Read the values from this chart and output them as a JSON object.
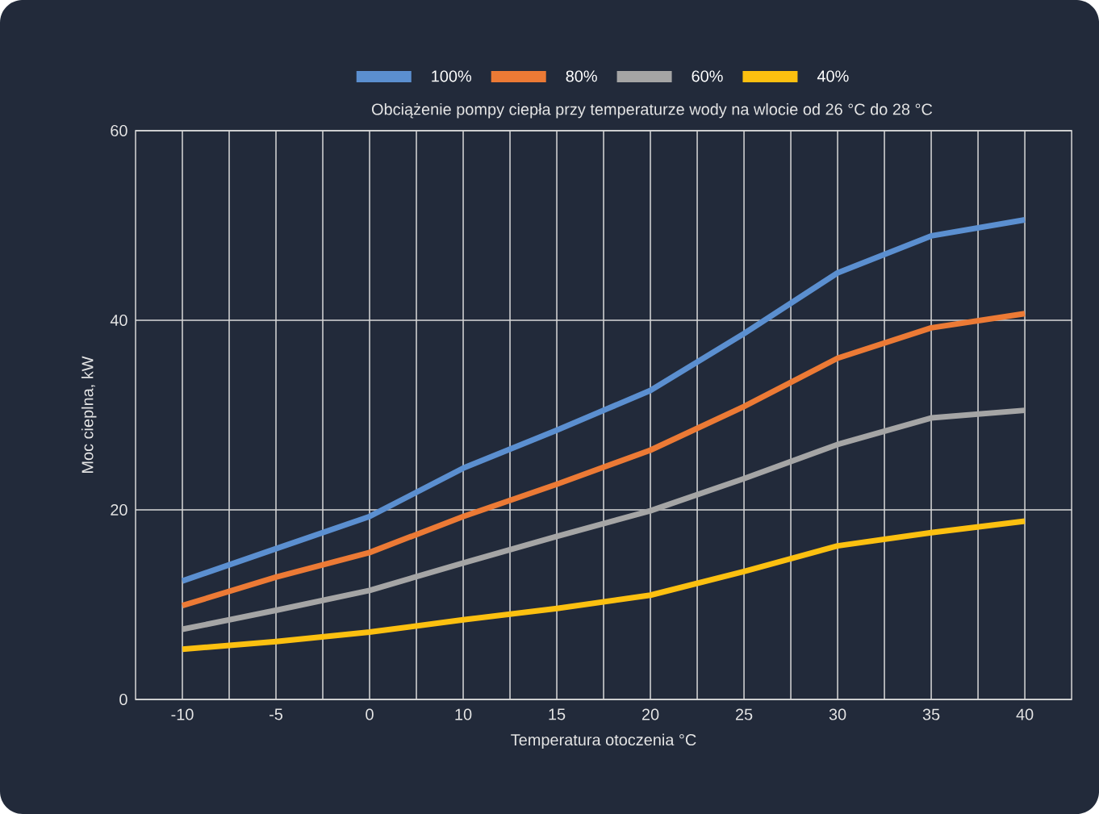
{
  "chart_data": {
    "type": "line",
    "title": "Obciążenie pompy ciepła przy temperaturze wody na wlocie od 26 °C do 28 °C",
    "xlabel": "Temperatura otoczenia °C",
    "ylabel": "Moc cieplna, kW",
    "categories": [
      "-10",
      "-5",
      "0",
      "10",
      "15",
      "20",
      "25",
      "30",
      "35",
      "40"
    ],
    "series": [
      {
        "name": "100%",
        "color": "#5b8fd0",
        "values": [
          12.5,
          15.9,
          19.3,
          24.4,
          28.4,
          32.6,
          38.6,
          45.0,
          48.9,
          50.6
        ]
      },
      {
        "name": "80%",
        "color": "#ec7a35",
        "values": [
          9.9,
          12.9,
          15.5,
          19.3,
          22.7,
          26.3,
          30.9,
          36.0,
          39.2,
          40.7
        ]
      },
      {
        "name": "60%",
        "color": "#a5a5a5",
        "values": [
          7.4,
          9.4,
          11.5,
          14.4,
          17.2,
          19.9,
          23.3,
          26.9,
          29.7,
          30.5
        ]
      },
      {
        "name": "40%",
        "color": "#fcc010",
        "values": [
          5.3,
          6.1,
          7.1,
          8.4,
          9.6,
          11.0,
          13.5,
          16.2,
          17.6,
          18.8
        ]
      }
    ],
    "ylim": [
      0,
      60
    ],
    "yticks": [
      0,
      20,
      40,
      60
    ],
    "grid": true,
    "legend": "top",
    "marker": "none",
    "line_style": "solid"
  }
}
